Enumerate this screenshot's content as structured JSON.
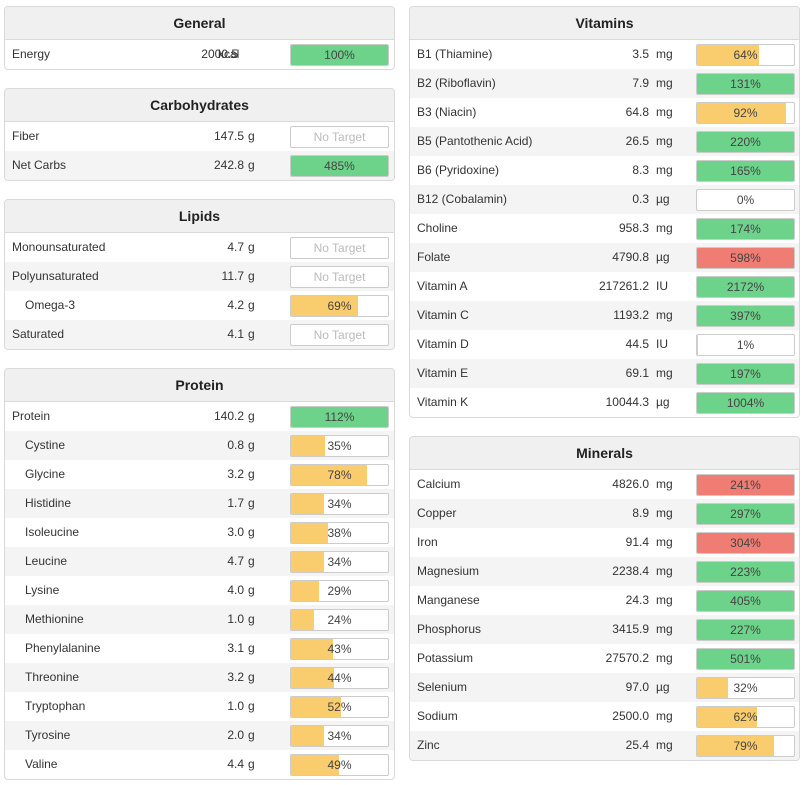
{
  "colors": {
    "green": "#6ed38a",
    "yellow": "#f9cc6e",
    "red": "#ef7d73"
  },
  "left": [
    {
      "title": "General",
      "rows": [
        {
          "name": "Energy",
          "amount": "2000.5",
          "unit": "kcal",
          "pct": "100%",
          "fill": 1.0,
          "color": "green",
          "wide": true
        }
      ]
    },
    {
      "title": "Carbohydrates",
      "rows": [
        {
          "name": "Fiber",
          "amount": "147.5",
          "unit": "g",
          "pct": "No Target",
          "fill": 0,
          "color": "none"
        },
        {
          "name": "Net Carbs",
          "amount": "242.8",
          "unit": "g",
          "pct": "485%",
          "fill": 1.0,
          "color": "green"
        }
      ]
    },
    {
      "title": "Lipids",
      "rows": [
        {
          "name": "Monounsaturated",
          "amount": "4.7",
          "unit": "g",
          "pct": "No Target",
          "fill": 0,
          "color": "none"
        },
        {
          "name": "Polyunsaturated",
          "amount": "11.7",
          "unit": "g",
          "pct": "No Target",
          "fill": 0,
          "color": "none"
        },
        {
          "name": "Omega-3",
          "amount": "4.2",
          "unit": "g",
          "pct": "69%",
          "fill": 0.69,
          "color": "yellow",
          "indent": true
        },
        {
          "name": "Saturated",
          "amount": "4.1",
          "unit": "g",
          "pct": "No Target",
          "fill": 0,
          "color": "none"
        }
      ]
    },
    {
      "title": "Protein",
      "rows": [
        {
          "name": "Protein",
          "amount": "140.2",
          "unit": "g",
          "pct": "112%",
          "fill": 1.0,
          "color": "green"
        },
        {
          "name": "Cystine",
          "amount": "0.8",
          "unit": "g",
          "pct": "35%",
          "fill": 0.35,
          "color": "yellow",
          "indent": true
        },
        {
          "name": "Glycine",
          "amount": "3.2",
          "unit": "g",
          "pct": "78%",
          "fill": 0.78,
          "color": "yellow",
          "indent": true
        },
        {
          "name": "Histidine",
          "amount": "1.7",
          "unit": "g",
          "pct": "34%",
          "fill": 0.34,
          "color": "yellow",
          "indent": true
        },
        {
          "name": "Isoleucine",
          "amount": "3.0",
          "unit": "g",
          "pct": "38%",
          "fill": 0.38,
          "color": "yellow",
          "indent": true
        },
        {
          "name": "Leucine",
          "amount": "4.7",
          "unit": "g",
          "pct": "34%",
          "fill": 0.34,
          "color": "yellow",
          "indent": true
        },
        {
          "name": "Lysine",
          "amount": "4.0",
          "unit": "g",
          "pct": "29%",
          "fill": 0.29,
          "color": "yellow",
          "indent": true
        },
        {
          "name": "Methionine",
          "amount": "1.0",
          "unit": "g",
          "pct": "24%",
          "fill": 0.24,
          "color": "yellow",
          "indent": true
        },
        {
          "name": "Phenylalanine",
          "amount": "3.1",
          "unit": "g",
          "pct": "43%",
          "fill": 0.43,
          "color": "yellow",
          "indent": true
        },
        {
          "name": "Threonine",
          "amount": "3.2",
          "unit": "g",
          "pct": "44%",
          "fill": 0.44,
          "color": "yellow",
          "indent": true
        },
        {
          "name": "Tryptophan",
          "amount": "1.0",
          "unit": "g",
          "pct": "52%",
          "fill": 0.52,
          "color": "yellow",
          "indent": true
        },
        {
          "name": "Tyrosine",
          "amount": "2.0",
          "unit": "g",
          "pct": "34%",
          "fill": 0.34,
          "color": "yellow",
          "indent": true
        },
        {
          "name": "Valine",
          "amount": "4.4",
          "unit": "g",
          "pct": "49%",
          "fill": 0.49,
          "color": "yellow",
          "indent": true
        }
      ]
    }
  ],
  "right": [
    {
      "title": "Vitamins",
      "rows": [
        {
          "name": "B1 (Thiamine)",
          "amount": "3.5",
          "unit": "mg",
          "pct": "64%",
          "fill": 0.64,
          "color": "yellow"
        },
        {
          "name": "B2 (Riboflavin)",
          "amount": "7.9",
          "unit": "mg",
          "pct": "131%",
          "fill": 1.0,
          "color": "green"
        },
        {
          "name": "B3 (Niacin)",
          "amount": "64.8",
          "unit": "mg",
          "pct": "92%",
          "fill": 0.92,
          "color": "yellow"
        },
        {
          "name": "B5 (Pantothenic Acid)",
          "amount": "26.5",
          "unit": "mg",
          "pct": "220%",
          "fill": 1.0,
          "color": "green"
        },
        {
          "name": "B6 (Pyridoxine)",
          "amount": "8.3",
          "unit": "mg",
          "pct": "165%",
          "fill": 1.0,
          "color": "green"
        },
        {
          "name": "B12 (Cobalamin)",
          "amount": "0.3",
          "unit": "µg",
          "pct": "0%",
          "fill": 0,
          "color": "yellow"
        },
        {
          "name": "Choline",
          "amount": "958.3",
          "unit": "mg",
          "pct": "174%",
          "fill": 1.0,
          "color": "green"
        },
        {
          "name": "Folate",
          "amount": "4790.8",
          "unit": "µg",
          "pct": "598%",
          "fill": 1.0,
          "color": "red"
        },
        {
          "name": "Vitamin A",
          "amount": "217261.2",
          "unit": "IU",
          "pct": "2172%",
          "fill": 1.0,
          "color": "green"
        },
        {
          "name": "Vitamin C",
          "amount": "1193.2",
          "unit": "mg",
          "pct": "397%",
          "fill": 1.0,
          "color": "green"
        },
        {
          "name": "Vitamin D",
          "amount": "44.5",
          "unit": "IU",
          "pct": "1%",
          "fill": 0.01,
          "color": "yellow"
        },
        {
          "name": "Vitamin E",
          "amount": "69.1",
          "unit": "mg",
          "pct": "197%",
          "fill": 1.0,
          "color": "green"
        },
        {
          "name": "Vitamin K",
          "amount": "10044.3",
          "unit": "µg",
          "pct": "1004%",
          "fill": 1.0,
          "color": "green"
        }
      ]
    },
    {
      "title": "Minerals",
      "rows": [
        {
          "name": "Calcium",
          "amount": "4826.0",
          "unit": "mg",
          "pct": "241%",
          "fill": 1.0,
          "color": "red"
        },
        {
          "name": "Copper",
          "amount": "8.9",
          "unit": "mg",
          "pct": "297%",
          "fill": 1.0,
          "color": "green"
        },
        {
          "name": "Iron",
          "amount": "91.4",
          "unit": "mg",
          "pct": "304%",
          "fill": 1.0,
          "color": "red"
        },
        {
          "name": "Magnesium",
          "amount": "2238.4",
          "unit": "mg",
          "pct": "223%",
          "fill": 1.0,
          "color": "green"
        },
        {
          "name": "Manganese",
          "amount": "24.3",
          "unit": "mg",
          "pct": "405%",
          "fill": 1.0,
          "color": "green"
        },
        {
          "name": "Phosphorus",
          "amount": "3415.9",
          "unit": "mg",
          "pct": "227%",
          "fill": 1.0,
          "color": "green"
        },
        {
          "name": "Potassium",
          "amount": "27570.2",
          "unit": "mg",
          "pct": "501%",
          "fill": 1.0,
          "color": "green"
        },
        {
          "name": "Selenium",
          "amount": "97.0",
          "unit": "µg",
          "pct": "32%",
          "fill": 0.32,
          "color": "yellow"
        },
        {
          "name": "Sodium",
          "amount": "2500.0",
          "unit": "mg",
          "pct": "62%",
          "fill": 0.62,
          "color": "yellow"
        },
        {
          "name": "Zinc",
          "amount": "25.4",
          "unit": "mg",
          "pct": "79%",
          "fill": 0.79,
          "color": "yellow"
        }
      ]
    }
  ]
}
